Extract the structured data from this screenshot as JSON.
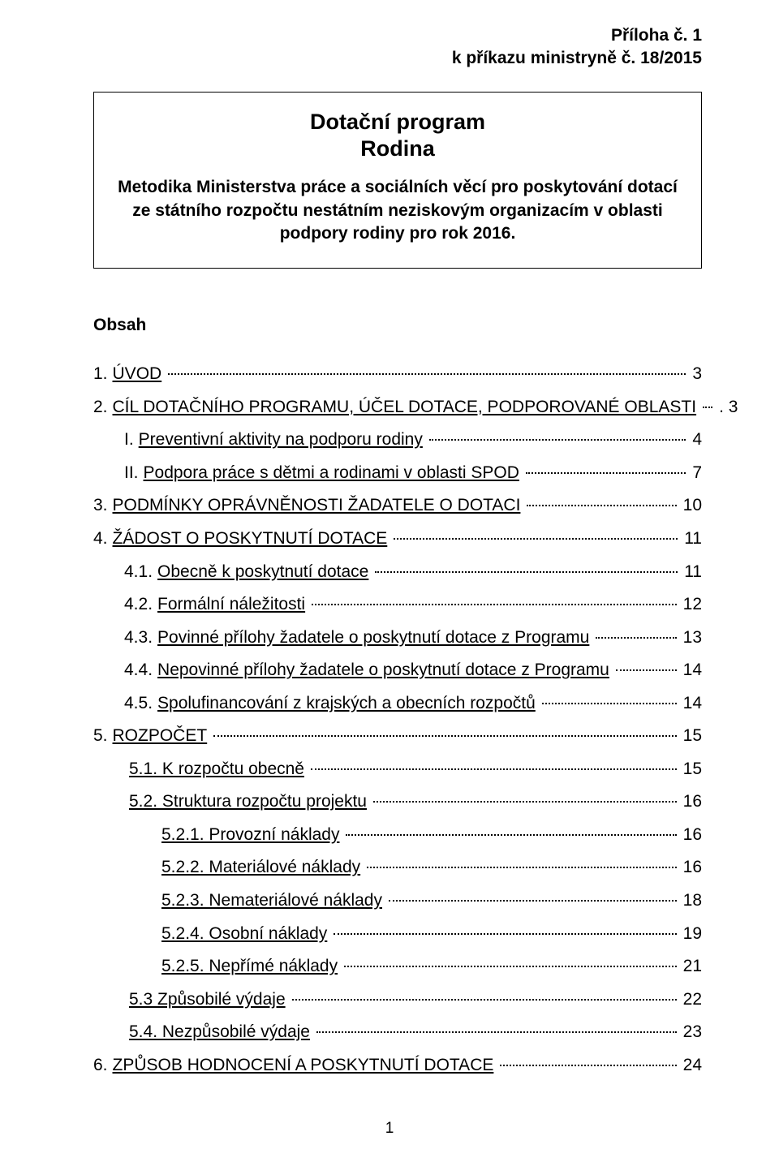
{
  "header": {
    "line1": "Příloha č. 1",
    "line2": "k příkazu ministryně č. 18/2015"
  },
  "titleBox": {
    "title1": "Dotační program",
    "title2": "Rodina",
    "subtitle": "Metodika Ministerstva práce a sociálních věcí pro poskytování dotací ze státního rozpočtu nestátním neziskovým organizacím v oblasti podpory rodiny pro rok 2016."
  },
  "obsahHeading": "Obsah",
  "toc": [
    {
      "indent": 0,
      "num": "1.",
      "text": "ÚVOD",
      "page": "3",
      "link": true
    },
    {
      "indent": 0,
      "num": "2.",
      "text": "CÍL DOTAČNÍHO PROGRAMU, ÚČEL DOTACE, PODPOROVANÉ OBLASTI",
      "page": ". 3",
      "link": true
    },
    {
      "indent": 1,
      "num": "I.",
      "text": "Preventivní aktivity na podporu rodiny",
      "page": "4",
      "link": true
    },
    {
      "indent": 1,
      "num": "II.",
      "text": "Podpora práce s dětmi a rodinami v oblasti  SPOD",
      "page": "7",
      "link": true
    },
    {
      "indent": 0,
      "num": "3.",
      "text": "PODMÍNKY OPRÁVNĚNOSTI ŽADATELE O DOTACI",
      "page": "10",
      "link": true
    },
    {
      "indent": 0,
      "num": "4.",
      "text": "ŽÁDOST O POSKYTNUTÍ DOTACE",
      "page": "11",
      "link": true
    },
    {
      "indent": 1,
      "num": "4.1.",
      "text": "Obecně k poskytnutí dotace",
      "page": "11",
      "link": true
    },
    {
      "indent": 1,
      "num": "4.2.",
      "text": "Formální náležitosti",
      "page": "12",
      "link": true
    },
    {
      "indent": 1,
      "num": "4.3.",
      "text": "Povinné přílohy žadatele o poskytnutí dotace z Programu",
      "page": "13",
      "link": true
    },
    {
      "indent": 1,
      "num": "4.4.",
      "text": "Nepovinné přílohy žadatele o poskytnutí dotace z Programu",
      "page": "14",
      "link": true
    },
    {
      "indent": 1,
      "num": "4.5.",
      "text": "Spolufinancování z krajských a obecních rozpočtů",
      "page": "14",
      "link": true
    },
    {
      "indent": 0,
      "num": "5.",
      "text": "ROZPOČET",
      "page": "15",
      "link": true
    },
    {
      "indent": 1,
      "num": "",
      "text": "5.1. K rozpočtu obecně",
      "page": "15",
      "link": true
    },
    {
      "indent": 1,
      "num": "",
      "text": "5.2. Struktura rozpočtu projektu",
      "page": "16",
      "link": true
    },
    {
      "indent": 2,
      "num": "",
      "text": "5.2.1. Provozní náklady",
      "page": "16",
      "link": true
    },
    {
      "indent": 2,
      "num": "",
      "text": "5.2.2. Materiálové náklady",
      "page": "16",
      "link": true
    },
    {
      "indent": 2,
      "num": "",
      "text": "5.2.3. Nemateriálové náklady",
      "page": "18",
      "link": true
    },
    {
      "indent": 2,
      "num": "",
      "text": "5.2.4. Osobní náklady",
      "page": "19",
      "link": true
    },
    {
      "indent": 2,
      "num": "",
      "text": "5.2.5. Nepřímé náklady",
      "page": "21",
      "link": true
    },
    {
      "indent": 1,
      "num": "",
      "text": "5.3 Způsobilé výdaje",
      "page": "22",
      "link": true
    },
    {
      "indent": 1,
      "num": "",
      "text": "5.4. Nezpůsobilé výdaje",
      "page": "23",
      "link": true
    },
    {
      "indent": 0,
      "num": "6.",
      "text": "ZPŮSOB HODNOCENÍ A POSKYTNUTÍ DOTACE",
      "page": "24",
      "link": true
    }
  ],
  "pageNumber": "1",
  "colors": {
    "text": "#000000",
    "background": "#ffffff",
    "border": "#000000",
    "link": "#000000"
  },
  "typography": {
    "baseFontFamily": "Arial",
    "headerFontSize": 21,
    "titleFontSize": 27,
    "subtitleFontSize": 21,
    "tocFontSize": 21,
    "pageNumFontSize": 19
  }
}
